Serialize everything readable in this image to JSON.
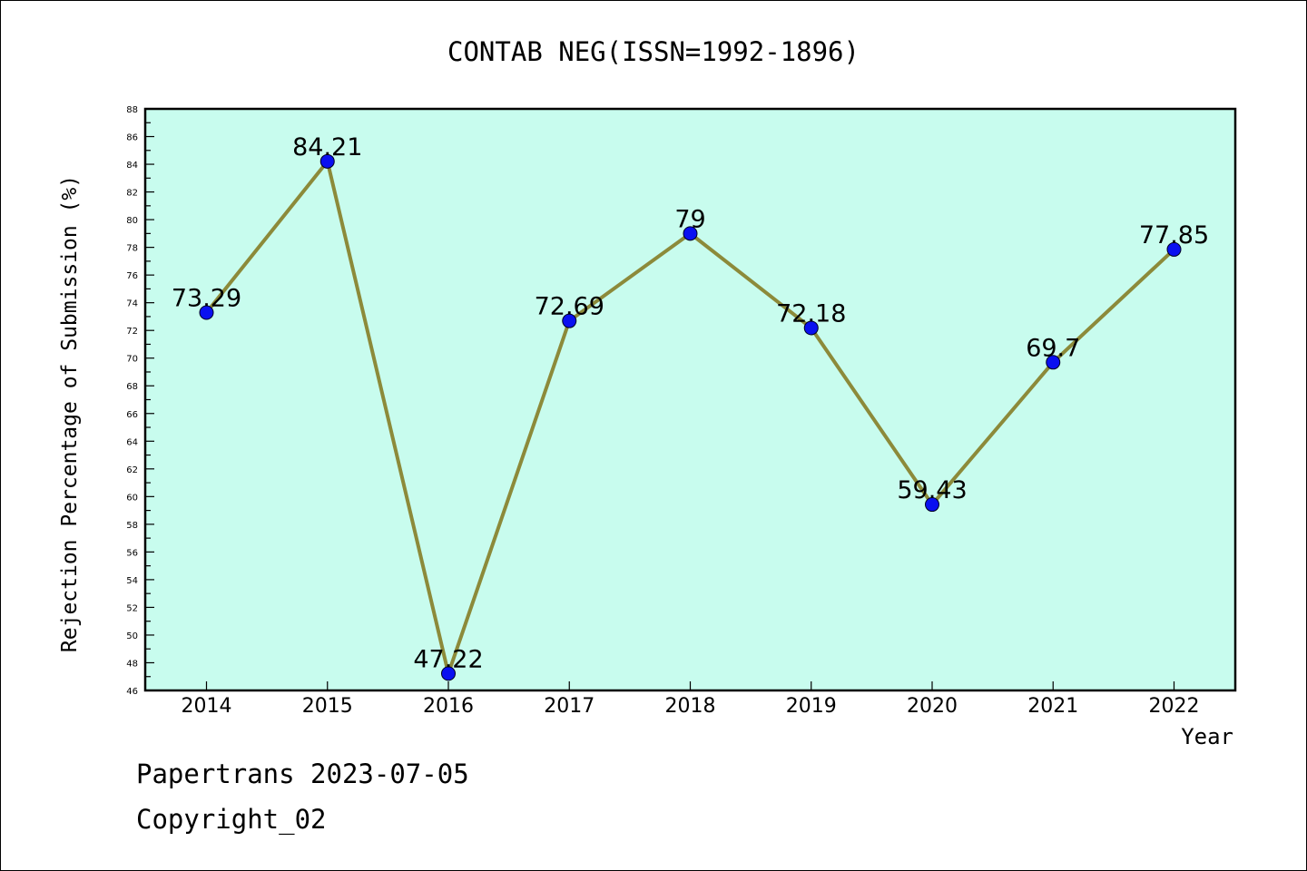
{
  "chart_data": {
    "type": "line",
    "title": "CONTAB NEG(ISSN=1992-1896)",
    "xlabel": "Year",
    "ylabel": "Rejection Percentage of Submission (%)",
    "categories": [
      "2014",
      "2015",
      "2016",
      "2017",
      "2018",
      "2019",
      "2020",
      "2021",
      "2022"
    ],
    "values": [
      73.29,
      84.21,
      47.22,
      72.69,
      79,
      72.18,
      59.43,
      69.7,
      77.85
    ],
    "data_labels": [
      "73.29",
      "84.21",
      "47.22",
      "72.69",
      "79",
      "72.18",
      "59.43",
      "69.7",
      "77.85"
    ],
    "ylim": [
      46,
      88
    ],
    "ytick_step": 2,
    "grid": false,
    "legend": "none",
    "colors": {
      "plot_background": "#c8fcee",
      "line": "#8c8a3a",
      "marker": "#0a10f0",
      "axis": "#000000"
    }
  },
  "footer": {
    "line1": "Papertrans 2023-07-05",
    "line2": "Copyright_02"
  }
}
